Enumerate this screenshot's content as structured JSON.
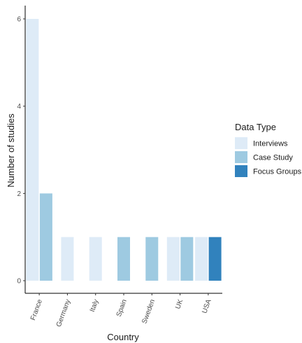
{
  "chart_data": {
    "type": "bar",
    "categories": [
      "France",
      "Germany",
      "Italy",
      "Spain",
      "Sweden",
      "UK",
      "USA"
    ],
    "ylabel": "Number of studies",
    "xlabel": "Country",
    "ylim": [
      0,
      6.3
    ],
    "yticks": [
      0,
      2,
      4,
      6
    ],
    "grid": false,
    "legend_placement": "right",
    "legend_title": "Data Type",
    "series": [
      {
        "name": "Interviews",
        "color": "#deebf7",
        "values": [
          6,
          1,
          1,
          0,
          0,
          1,
          1
        ]
      },
      {
        "name": "Case Study",
        "color": "#9ecae1",
        "values": [
          2,
          0,
          0,
          1,
          1,
          1,
          0
        ]
      },
      {
        "name": "Focus Groups",
        "color": "#3182bd",
        "values": [
          0,
          0,
          0,
          0,
          0,
          0,
          1
        ]
      }
    ]
  }
}
